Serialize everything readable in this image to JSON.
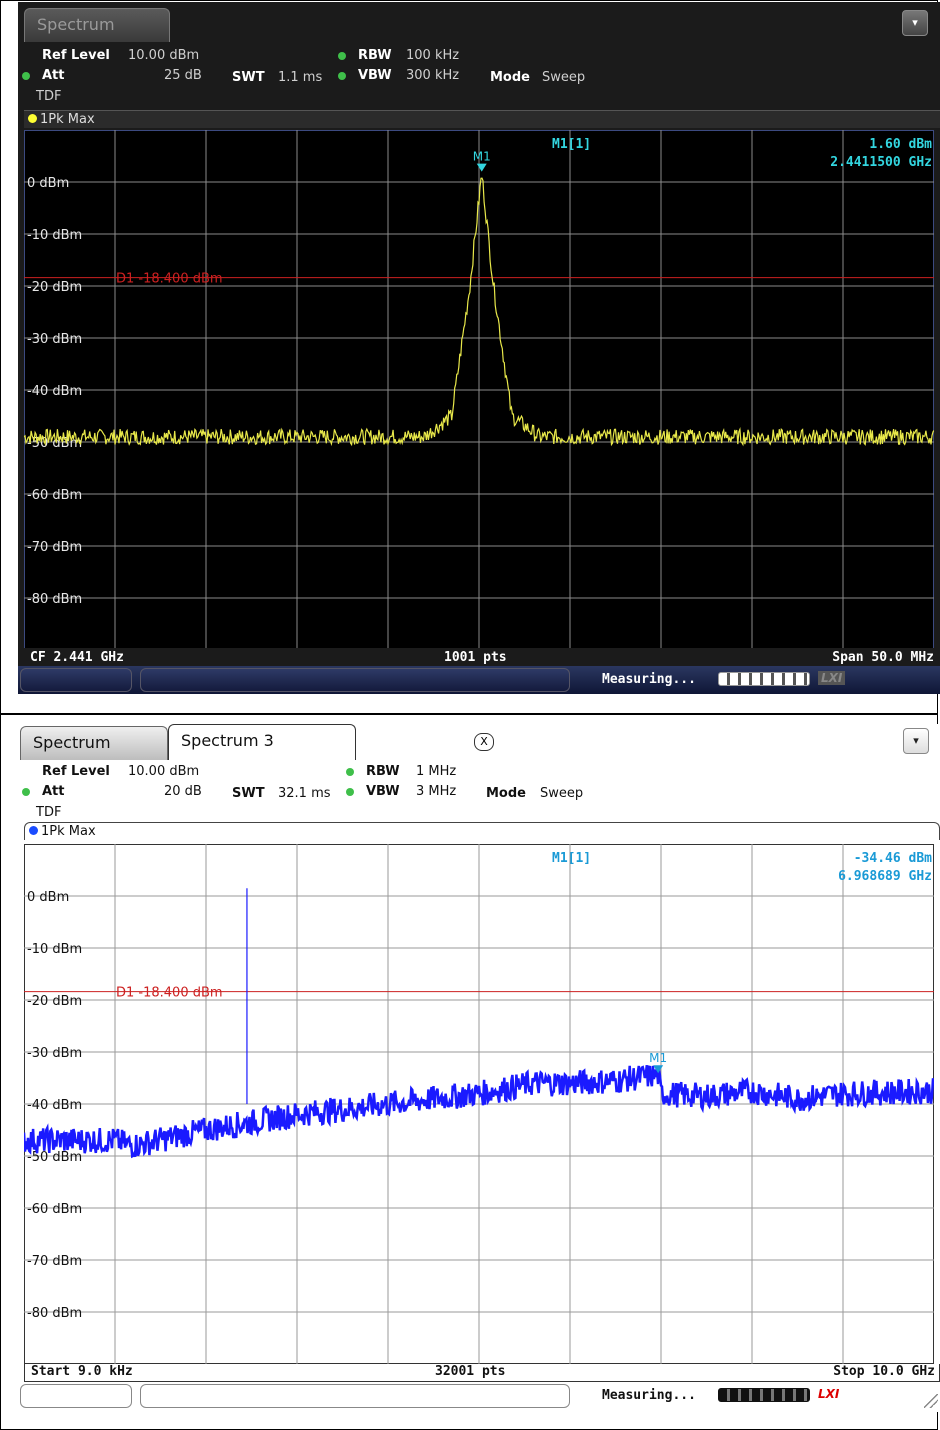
{
  "window1": {
    "tab_label": "Spectrum",
    "settings": {
      "ref_level_label": "Ref Level",
      "ref_level_value": "10.00 dBm",
      "att_label": "Att",
      "att_value": "25 dB",
      "swt_label": "SWT",
      "swt_value": "1.1 ms",
      "rbw_label": "RBW",
      "rbw_value": "100 kHz",
      "vbw_label": "VBW",
      "vbw_value": "300 kHz",
      "mode_label": "Mode",
      "mode_value": "Sweep",
      "tdf_label": "TDF"
    },
    "trace_label": "1Pk Max",
    "marker": {
      "name": "M1",
      "label": "M1[1]",
      "level": "1.60 dBm",
      "freq": "2.4411500 GHz"
    },
    "display_line": "D1 -18.400 dBm",
    "y_labels": [
      "0 dBm",
      "-10 dBm",
      "-20 dBm",
      "-30 dBm",
      "-40 dBm",
      "-50 dBm",
      "-60 dBm",
      "-70 dBm",
      "-80 dBm"
    ],
    "bottom": {
      "left": "CF 2.441 GHz",
      "center": "1001 pts",
      "right": "Span 50.0 MHz"
    },
    "status": "Measuring...",
    "lxi": "LXI"
  },
  "window2": {
    "tab_label": "Spectrum",
    "tab2_label": "Spectrum 3",
    "tab_close": "X",
    "settings": {
      "ref_level_label": "Ref Level",
      "ref_level_value": "10.00 dBm",
      "att_label": "Att",
      "att_value": "20 dB",
      "swt_label": "SWT",
      "swt_value": "32.1 ms",
      "rbw_label": "RBW",
      "rbw_value": "1 MHz",
      "vbw_label": "VBW",
      "vbw_value": "3 MHz",
      "mode_label": "Mode",
      "mode_value": "Sweep",
      "tdf_label": "TDF"
    },
    "trace_label": "1Pk Max",
    "marker": {
      "name": "M1",
      "label": "M1[1]",
      "level": "-34.46 dBm",
      "freq": "6.968689 GHz"
    },
    "display_line": "D1 -18.400 dBm",
    "y_labels": [
      "0 dBm",
      "-10 dBm",
      "-20 dBm",
      "-30 dBm",
      "-40 dBm",
      "-50 dBm",
      "-60 dBm",
      "-70 dBm",
      "-80 dBm"
    ],
    "bottom": {
      "left": "Start 9.0 kHz",
      "center": "32001 pts",
      "right": "Stop 10.0 GHz"
    },
    "status": "Measuring...",
    "lxi": "LXI"
  },
  "colors": {
    "trace1": "#e8e84a",
    "trace2": "#1a1aff",
    "marker1": "#33d6e0",
    "marker2": "#1a9ad6",
    "display_line": "#cc2020",
    "grid_dark": "#8a8a8a",
    "grid_light": "#9a9a9a"
  },
  "icons": {
    "menu": "menu-dropdown-icon",
    "close": "close-icon"
  },
  "chart_data": [
    {
      "type": "line",
      "title": "",
      "xlabel": "",
      "ylabel": "",
      "x_range_ghz": [
        2.416,
        2.466
      ],
      "ylim": [
        -90,
        10
      ],
      "reference_line": -18.4,
      "series": [
        {
          "x_ghz": [
            2.416,
            2.438,
            2.4395,
            2.4405,
            2.44115,
            2.4418,
            2.4428,
            2.4443,
            2.466
          ],
          "y_dbm": [
            -49,
            -49,
            -45,
            -20,
            1.6,
            -20,
            -45,
            -49,
            -49
          ]
        }
      ],
      "grid": true
    },
    {
      "type": "line",
      "title": "",
      "xlabel": "",
      "ylabel": "",
      "x_range_ghz": [
        9e-06,
        10.0
      ],
      "ylim": [
        -90,
        10
      ],
      "reference_line": -18.4,
      "series": [
        {
          "x_ghz": [
            0,
            1.0,
            1.2,
            2.0,
            3.0,
            4.0,
            5.0,
            5.6,
            6.0,
            6.5,
            6.968689,
            7.0,
            7.5,
            8.0,
            8.5,
            9.0,
            10.0
          ],
          "y_dbm": [
            -47,
            -47,
            -48,
            -45,
            -42,
            -40,
            -38,
            -36,
            -36,
            -35.5,
            -34.46,
            -38,
            -38.5,
            -37.5,
            -39,
            -38,
            -37.5
          ]
        },
        {
          "x_ghz": [
            2.45,
            2.45
          ],
          "y_dbm": [
            -40,
            1.5
          ]
        }
      ],
      "grid": true
    }
  ]
}
